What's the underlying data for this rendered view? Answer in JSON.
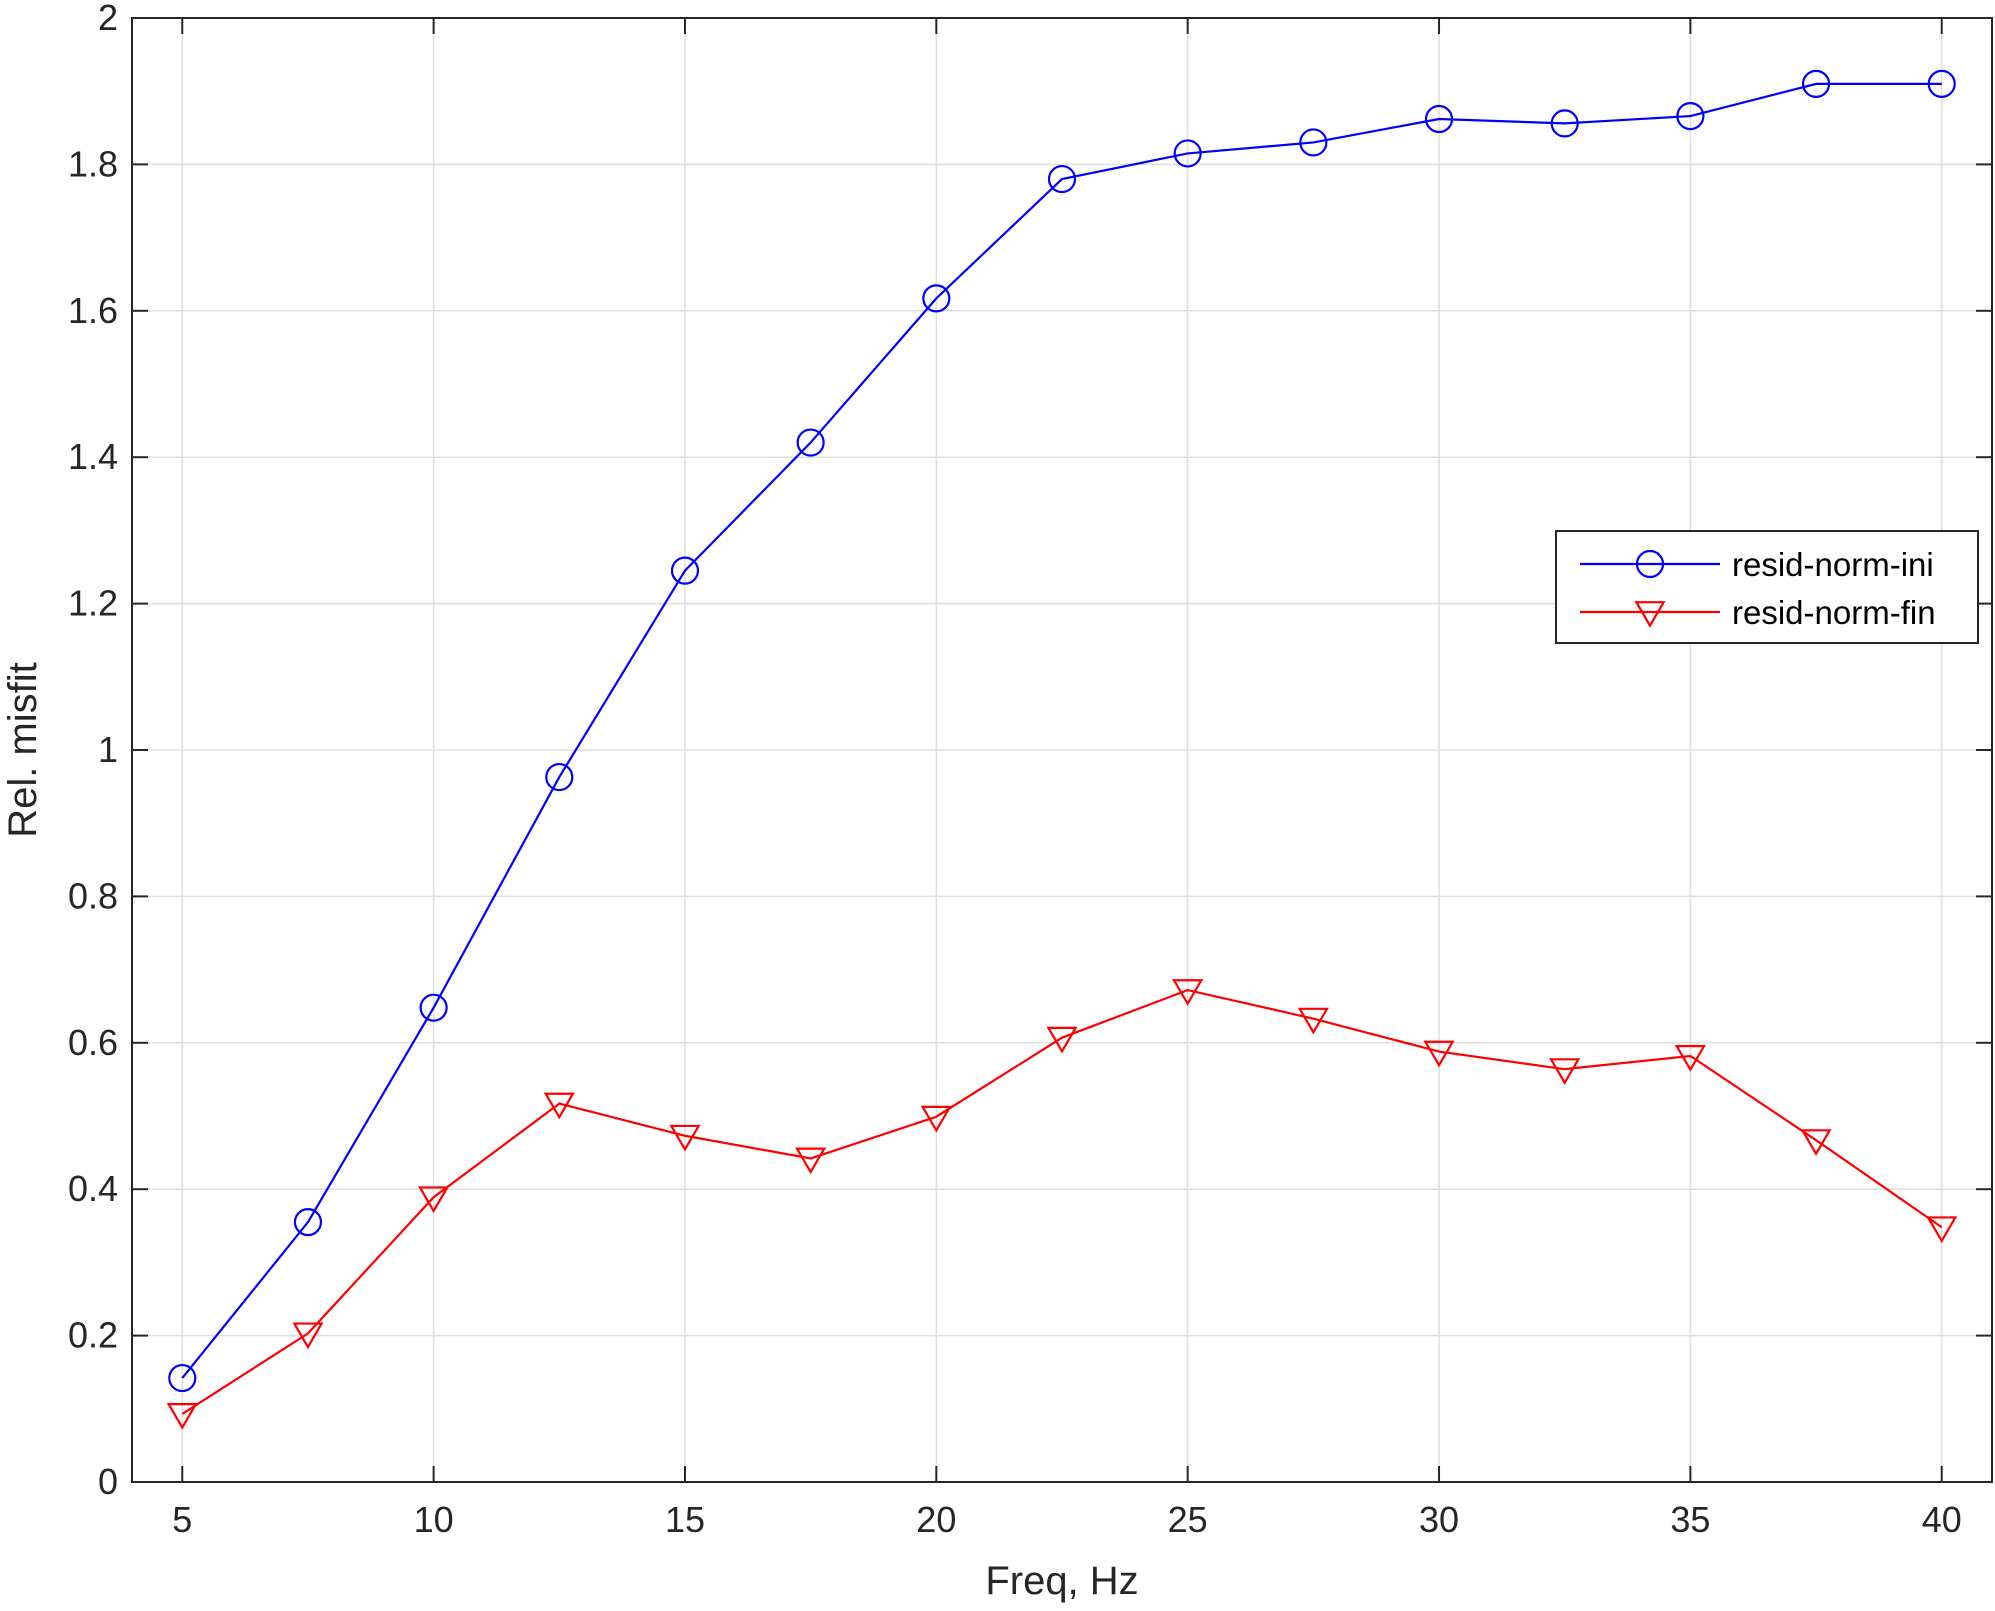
{
  "chart_data": {
    "type": "line",
    "title": "",
    "xlabel": "Freq, Hz",
    "ylabel": "Rel. misfit",
    "xlim": [
      4,
      41
    ],
    "ylim": [
      0,
      2
    ],
    "xticks": [
      5,
      10,
      15,
      20,
      25,
      30,
      35,
      40
    ],
    "yticks": [
      0,
      0.2,
      0.4,
      0.6,
      0.8,
      1,
      1.2,
      1.4,
      1.6,
      1.8,
      2
    ],
    "xtick_labels": [
      "5",
      "10",
      "15",
      "20",
      "25",
      "30",
      "35",
      "40"
    ],
    "ytick_labels": [
      "0",
      "0.2",
      "0.4",
      "0.6",
      "0.8",
      "1",
      "1.2",
      "1.4",
      "1.6",
      "1.8",
      "2"
    ],
    "grid": true,
    "legend_position": "right",
    "x": [
      5,
      7.5,
      10,
      12.5,
      15,
      17.5,
      20,
      22.5,
      25,
      27.5,
      30,
      32.5,
      35,
      37.5,
      40
    ],
    "series": [
      {
        "name": "resid-norm-ini",
        "color": "#0000ff",
        "marker": "circle",
        "values": [
          0.142,
          0.355,
          0.648,
          0.963,
          1.245,
          1.42,
          1.617,
          1.78,
          1.815,
          1.83,
          1.862,
          1.856,
          1.866,
          1.91,
          1.91
        ]
      },
      {
        "name": "resid-norm-fin",
        "color": "#ff0000",
        "marker": "triangle-down",
        "values": [
          0.093,
          0.203,
          0.389,
          0.517,
          0.473,
          0.442,
          0.499,
          0.607,
          0.672,
          0.633,
          0.588,
          0.564,
          0.582,
          0.467,
          0.348
        ]
      }
    ]
  }
}
